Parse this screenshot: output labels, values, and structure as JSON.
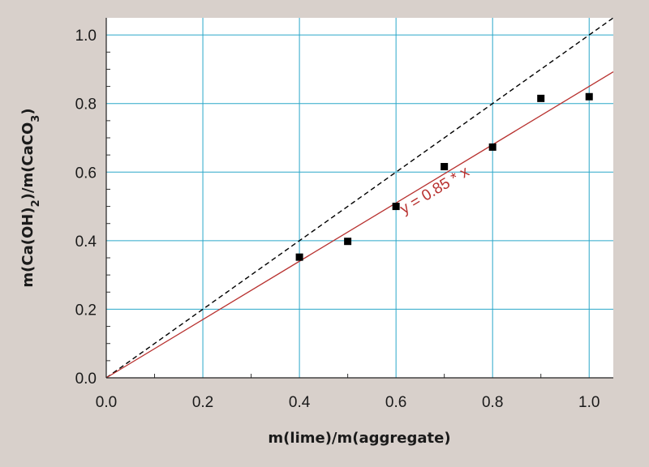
{
  "chart_data": {
    "type": "scatter",
    "xlabel": "m(lime)/m(aggregate)",
    "ylabel": {
      "parts": [
        {
          "t": "m(Ca(OH)",
          "sub": false
        },
        {
          "t": "2",
          "sub": true
        },
        {
          "t": ")/m(CaCO",
          "sub": false
        },
        {
          "t": "3",
          "sub": true
        },
        {
          "t": ")",
          "sub": false
        }
      ]
    },
    "xlim": [
      0,
      1.05
    ],
    "ylim": [
      0,
      1.05
    ],
    "x_ticks": [
      "0.0",
      "0.2",
      "0.4",
      "0.6",
      "0.8",
      "1.0"
    ],
    "y_ticks": [
      "0.0",
      "0.2",
      "0.4",
      "0.6",
      "0.8",
      "1.0"
    ],
    "grid": true,
    "series": [
      {
        "x": [
          0.4,
          0.5,
          0.6,
          0.7,
          0.8,
          0.9,
          1.0
        ],
        "y": [
          0.352,
          0.398,
          0.5,
          0.616,
          0.673,
          0.815,
          0.82
        ],
        "marker": "square",
        "color": "#000000"
      }
    ],
    "lines": [
      {
        "slope": 1.0,
        "style": "dashed",
        "color": "#000000"
      },
      {
        "slope": 0.85,
        "style": "solid",
        "color": "#b8312f"
      }
    ],
    "annotations": [
      {
        "text": "y = 0.85 * x",
        "x": 0.685,
        "y": 0.535,
        "color": "#b8312f"
      }
    ],
    "colors": {
      "background": "#d8d0cb",
      "plot_area": "#ffffff",
      "grid": "#2aa7c9"
    }
  }
}
